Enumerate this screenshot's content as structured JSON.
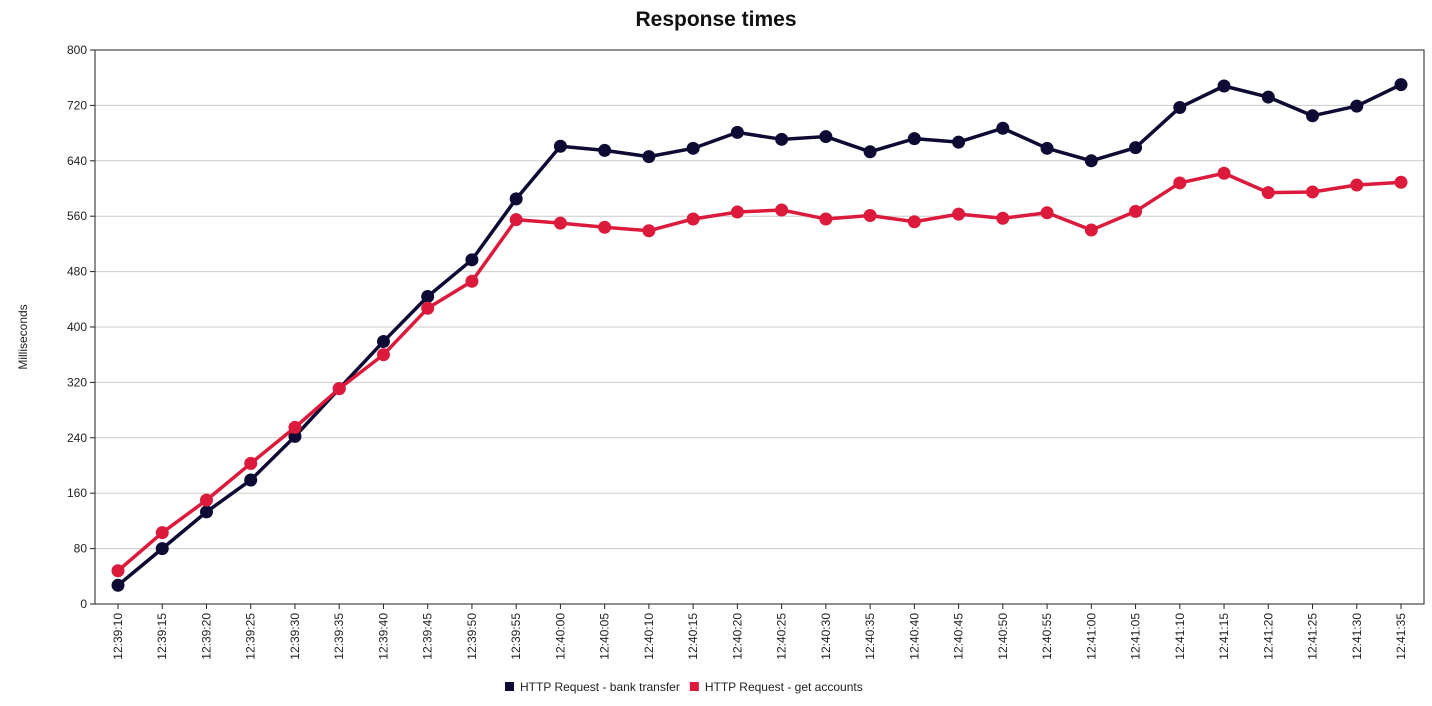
{
  "chart_data": {
    "type": "line",
    "title": "Response times",
    "xlabel": "",
    "ylabel": "Milliseconds",
    "ylim": [
      0,
      800
    ],
    "yticks": [
      0,
      80,
      160,
      240,
      320,
      400,
      480,
      560,
      640,
      720,
      800
    ],
    "grid": true,
    "legend_position": "bottom",
    "categories": [
      "12:39:10",
      "12:39:15",
      "12:39:20",
      "12:39:25",
      "12:39:30",
      "12:39:35",
      "12:39:40",
      "12:39:45",
      "12:39:50",
      "12:39:55",
      "12:40:00",
      "12:40:05",
      "12:40:10",
      "12:40:15",
      "12:40:20",
      "12:40:25",
      "12:40:30",
      "12:40:35",
      "12:40:40",
      "12:40:45",
      "12:40:50",
      "12:40:55",
      "12:41:00",
      "12:41:05",
      "12:41:10",
      "12:41:15",
      "12:41:20",
      "12:41:25",
      "12:41:30",
      "12:41:35"
    ],
    "series": [
      {
        "name": "HTTP Request - bank transfer",
        "color": "#0d0a33",
        "values": [
          27,
          80,
          133,
          179,
          242,
          311,
          379,
          444,
          497,
          585,
          661,
          655,
          646,
          658,
          681,
          671,
          675,
          653,
          672,
          667,
          687,
          658,
          640,
          659,
          717,
          748,
          732,
          705,
          719,
          750
        ]
      },
      {
        "name": "HTTP Request - get accounts",
        "color": "#db1a3c",
        "values": [
          48,
          103,
          150,
          203,
          255,
          311,
          360,
          427,
          466,
          555,
          550,
          544,
          539,
          556,
          566,
          569,
          556,
          561,
          552,
          563,
          557,
          565,
          540,
          567,
          608,
          622,
          594,
          595,
          605,
          609
        ]
      }
    ]
  }
}
